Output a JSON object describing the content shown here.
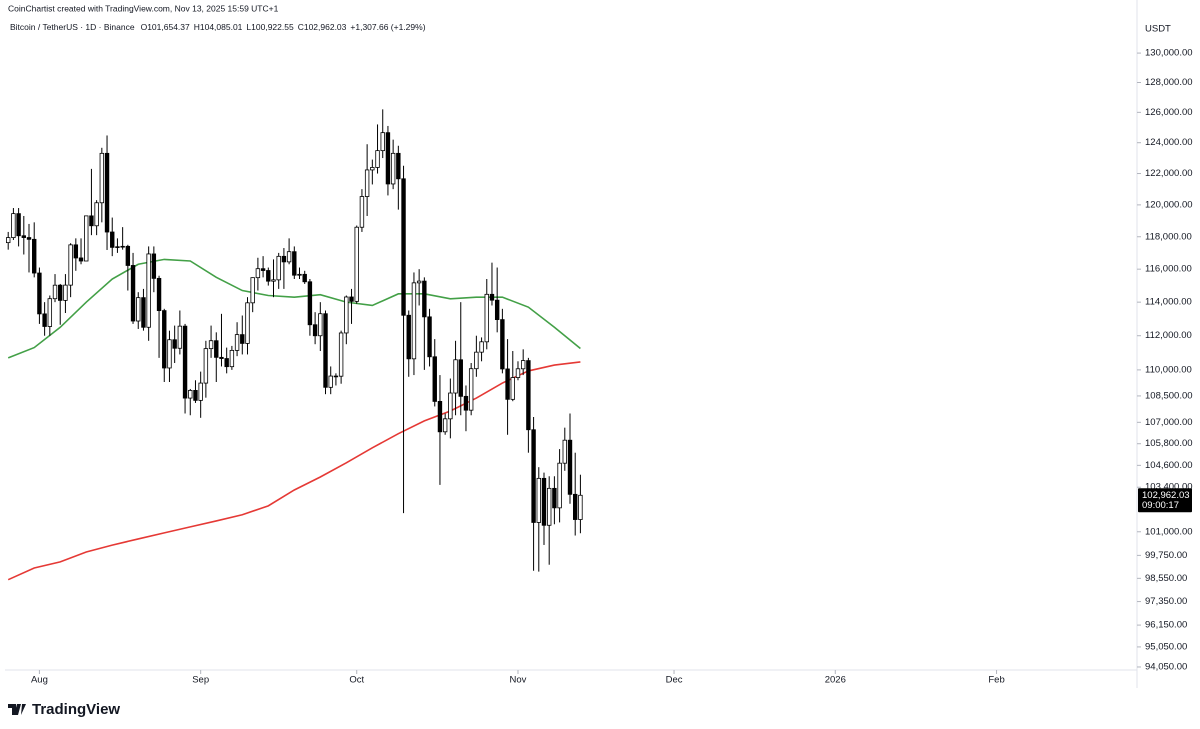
{
  "credit": "CoinChartist created with TradingView.com, Nov 13, 2025 15:59 UTC+1",
  "brand": "TradingView",
  "chart_data": {
    "type": "candlestick",
    "symbol": "Bitcoin / TetherUS · 1D · Binance",
    "ohlc": [
      "O101,654.37",
      "H104,085.01",
      "L100,922.55",
      "C102,962.03",
      "+1,307.66 (+1.29%)"
    ],
    "unit": "USDT",
    "log": true,
    "last_price": {
      "value": 102962.03,
      "label": "102,962.03"
    },
    "countdown": "09:00:17",
    "up_color": "#ffffff",
    "down_color": "#000000",
    "wick_color": "#000000",
    "xlim": [
      "2025-07-25",
      "2026-02-28"
    ],
    "xticks": [
      {
        "value": "2025-08-01",
        "label": "Aug"
      },
      {
        "value": "2025-09-01",
        "label": "Sep"
      },
      {
        "value": "2025-10-01",
        "label": "Oct"
      },
      {
        "value": "2025-11-01",
        "label": "Nov"
      },
      {
        "value": "2025-12-01",
        "label": "Dec"
      },
      {
        "value": "2026-01-01",
        "label": "2026"
      },
      {
        "value": "2026-02-01",
        "label": "Feb"
      }
    ],
    "ylim": [
      93900,
      130900
    ],
    "yticks": [
      {
        "value": 130000,
        "label": "130,000.00"
      },
      {
        "value": 128000,
        "label": "128,000.00"
      },
      {
        "value": 126000,
        "label": "126,000.00"
      },
      {
        "value": 124000,
        "label": "124,000.00"
      },
      {
        "value": 122000,
        "label": "122,000.00"
      },
      {
        "value": 120000,
        "label": "120,000.00"
      },
      {
        "value": 118000,
        "label": "118,000.00"
      },
      {
        "value": 116000,
        "label": "116,000.00"
      },
      {
        "value": 114000,
        "label": "114,000.00"
      },
      {
        "value": 112000,
        "label": "112,000.00"
      },
      {
        "value": 110000,
        "label": "110,000.00"
      },
      {
        "value": 108500,
        "label": "108,500.00"
      },
      {
        "value": 107000,
        "label": "107,000.00"
      },
      {
        "value": 105800,
        "label": "105,800.00"
      },
      {
        "value": 104600,
        "label": "104,600.00"
      },
      {
        "value": 103400,
        "label": "103,400.00"
      },
      {
        "value": 101000,
        "label": "101,000.00"
      },
      {
        "value": 99750,
        "label": "99,750.00"
      },
      {
        "value": 98550,
        "label": "98,550.00"
      },
      {
        "value": 97350,
        "label": "97,350.00"
      },
      {
        "value": 96150,
        "label": "96,150.00"
      },
      {
        "value": 95050,
        "label": "95,050.00"
      },
      {
        "value": 94050,
        "label": "94,050.00"
      }
    ],
    "x": [
      "2025-07-26",
      "2025-07-27",
      "2025-07-28",
      "2025-07-29",
      "2025-07-30",
      "2025-07-31",
      "2025-08-01",
      "2025-08-02",
      "2025-08-03",
      "2025-08-04",
      "2025-08-05",
      "2025-08-06",
      "2025-08-07",
      "2025-08-08",
      "2025-08-09",
      "2025-08-10",
      "2025-08-11",
      "2025-08-12",
      "2025-08-13",
      "2025-08-14",
      "2025-08-15",
      "2025-08-16",
      "2025-08-17",
      "2025-08-18",
      "2025-08-19",
      "2025-08-20",
      "2025-08-21",
      "2025-08-22",
      "2025-08-23",
      "2025-08-24",
      "2025-08-25",
      "2025-08-26",
      "2025-08-27",
      "2025-08-28",
      "2025-08-29",
      "2025-08-30",
      "2025-08-31",
      "2025-09-01",
      "2025-09-02",
      "2025-09-03",
      "2025-09-04",
      "2025-09-05",
      "2025-09-06",
      "2025-09-07",
      "2025-09-08",
      "2025-09-09",
      "2025-09-10",
      "2025-09-11",
      "2025-09-12",
      "2025-09-13",
      "2025-09-14",
      "2025-09-15",
      "2025-09-16",
      "2025-09-17",
      "2025-09-18",
      "2025-09-19",
      "2025-09-20",
      "2025-09-21",
      "2025-09-22",
      "2025-09-23",
      "2025-09-24",
      "2025-09-25",
      "2025-09-26",
      "2025-09-27",
      "2025-09-28",
      "2025-09-29",
      "2025-09-30",
      "2025-10-01",
      "2025-10-02",
      "2025-10-03",
      "2025-10-04",
      "2025-10-05",
      "2025-10-06",
      "2025-10-07",
      "2025-10-08",
      "2025-10-09",
      "2025-10-10",
      "2025-10-11",
      "2025-10-12",
      "2025-10-13",
      "2025-10-14",
      "2025-10-15",
      "2025-10-16",
      "2025-10-17",
      "2025-10-18",
      "2025-10-19",
      "2025-10-20",
      "2025-10-21",
      "2025-10-22",
      "2025-10-23",
      "2025-10-24",
      "2025-10-25",
      "2025-10-26",
      "2025-10-27",
      "2025-10-28",
      "2025-10-29",
      "2025-10-30",
      "2025-10-31",
      "2025-11-01",
      "2025-11-02",
      "2025-11-03",
      "2025-11-04",
      "2025-11-05",
      "2025-11-06",
      "2025-11-07",
      "2025-11-08",
      "2025-11-09",
      "2025-11-10",
      "2025-11-11",
      "2025-11-12",
      "2025-11-13"
    ],
    "open": [
      117635,
      117947,
      119448,
      118062,
      117950,
      117840,
      115764,
      113297,
      112547,
      114208,
      115024,
      114106,
      115028,
      117497,
      116688,
      116500,
      119306,
      118686,
      120134,
      123306,
      118295,
      117342,
      117380,
      117405,
      116227,
      112872,
      114271,
      112500,
      116935,
      115438,
      113493,
      110111,
      111763,
      111262,
      112566,
      108377,
      108816,
      108246,
      109237,
      111240,
      111705,
      110730,
      110660,
      110187,
      111137,
      112065,
      111546,
      113960,
      115482,
      116029,
      115918,
      115268,
      115349,
      116788,
      116447,
      117074,
      115632,
      115685,
      115232,
      112650,
      111998,
      113307,
      108994,
      109643,
      109635,
      112163,
      114311,
      114048,
      118594,
      120529,
      122232,
      122391,
      123482,
      124658,
      121332,
      123306,
      121662,
      113214,
      110644,
      115166,
      115272,
      113119,
      110763,
      108187,
      106467,
      107198,
      108666,
      110588,
      108476,
      107688,
      110069,
      111033,
      111641,
      114472,
      114119,
      112956,
      110055,
      108305,
      109556,
      110064,
      110540,
      106583,
      101497,
      103885,
      101346,
      103339,
      102282,
      104719,
      105996,
      103014,
      101654
    ],
    "high": [
      118300,
      119800,
      119800,
      119300,
      118800,
      118900,
      116100,
      114000,
      114400,
      115700,
      115100,
      115700,
      117600,
      117900,
      117900,
      119300,
      122300,
      120300,
      123667,
      124474,
      119200,
      117900,
      118600,
      117500,
      117000,
      114600,
      114800,
      117400,
      117400,
      115600,
      113600,
      112300,
      112600,
      113500,
      112700,
      108900,
      109400,
      109900,
      111700,
      112600,
      112200,
      113300,
      111300,
      111400,
      112800,
      113200,
      114300,
      115500,
      116700,
      116800,
      116100,
      116600,
      117000,
      117300,
      117900,
      117400,
      116100,
      115900,
      115400,
      113400,
      114000,
      113500,
      110200,
      109800,
      112300,
      114400,
      114800,
      118700,
      121000,
      123900,
      122900,
      125200,
      126199,
      125100,
      124200,
      123800,
      122500,
      113500,
      115800,
      116000,
      115500,
      113600,
      111800,
      109700,
      107500,
      109500,
      111700,
      114000,
      109100,
      110400,
      112000,
      111900,
      115400,
      116400,
      116100,
      113600,
      111800,
      111100,
      110500,
      111200,
      110700,
      107300,
      104500,
      104200,
      104000,
      104000,
      105500,
      106700,
      107500,
      105300,
      104085
    ],
    "low": [
      117200,
      117800,
      117400,
      116900,
      115800,
      115500,
      112700,
      112000,
      112000,
      114000,
      112650,
      113350,
      114300,
      115900,
      116300,
      116500,
      118100,
      118100,
      118900,
      117180,
      116800,
      117000,
      117200,
      114700,
      112700,
      112400,
      112300,
      111700,
      114600,
      110700,
      109300,
      109300,
      110400,
      110900,
      107500,
      107400,
      108100,
      107255,
      108400,
      110700,
      109300,
      110200,
      109800,
      110000,
      110800,
      110900,
      110900,
      113400,
      114700,
      115500,
      115000,
      114300,
      114800,
      114800,
      116300,
      115400,
      115400,
      115100,
      112000,
      111500,
      111100,
      108600,
      108600,
      109100,
      109200,
      111500,
      112700,
      113900,
      118300,
      119300,
      121300,
      122000,
      123000,
      120600,
      121000,
      119700,
      102000,
      109600,
      109700,
      113800,
      110000,
      110200,
      107900,
      103528,
      106300,
      106100,
      107400,
      107400,
      106500,
      107400,
      109600,
      110500,
      111200,
      113800,
      112200,
      109800,
      106300,
      108200,
      109400,
      109700,
      105300,
      98944,
      98900,
      100300,
      99260,
      101400,
      101500,
      104300,
      102500,
      100800,
      100922
    ],
    "close": [
      117947,
      119448,
      118062,
      117950,
      117840,
      115764,
      113297,
      112547,
      114208,
      115024,
      114106,
      115028,
      117497,
      116688,
      116500,
      119306,
      118686,
      120134,
      123306,
      118295,
      117342,
      117380,
      117405,
      116227,
      112872,
      114271,
      112500,
      116935,
      115438,
      113493,
      110111,
      111763,
      111262,
      112566,
      108377,
      108816,
      108246,
      109237,
      111240,
      111705,
      110730,
      110660,
      110187,
      111137,
      112065,
      111546,
      113960,
      115482,
      116029,
      115918,
      115268,
      115349,
      116788,
      116447,
      117074,
      115632,
      115685,
      115232,
      112650,
      111998,
      113307,
      108994,
      109643,
      109635,
      112163,
      114311,
      114048,
      118594,
      120529,
      122232,
      122391,
      123482,
      124658,
      121332,
      123306,
      121662,
      113214,
      110644,
      115166,
      115272,
      113119,
      110763,
      108187,
      106467,
      107198,
      108666,
      110588,
      108476,
      107688,
      110069,
      111033,
      111641,
      114472,
      114119,
      112956,
      110055,
      108305,
      109556,
      110064,
      110540,
      106583,
      101497,
      103885,
      101346,
      103339,
      102282,
      104719,
      105996,
      103014,
      101654,
      102962
    ],
    "series": [
      {
        "color": "#43a047",
        "x": [
          "2025-07-26",
          "2025-07-31",
          "2025-08-05",
          "2025-08-10",
          "2025-08-15",
          "2025-08-20",
          "2025-08-25",
          "2025-08-30",
          "2025-09-04",
          "2025-09-09",
          "2025-09-14",
          "2025-09-19",
          "2025-09-24",
          "2025-09-29",
          "2025-10-04",
          "2025-10-09",
          "2025-10-14",
          "2025-10-19",
          "2025-10-24",
          "2025-10-29",
          "2025-11-03",
          "2025-11-08",
          "2025-11-13"
        ],
        "values": [
          110700,
          111300,
          112500,
          114000,
          115400,
          116300,
          116600,
          116500,
          115500,
          114700,
          114400,
          114300,
          114450,
          114000,
          113800,
          114500,
          114500,
          114200,
          114300,
          114300,
          113700,
          112500,
          111250
        ]
      },
      {
        "color": "#e53935",
        "x": [
          "2025-07-26",
          "2025-07-31",
          "2025-08-05",
          "2025-08-10",
          "2025-08-15",
          "2025-08-20",
          "2025-08-25",
          "2025-08-30",
          "2025-09-04",
          "2025-09-09",
          "2025-09-14",
          "2025-09-19",
          "2025-09-24",
          "2025-09-29",
          "2025-10-04",
          "2025-10-09",
          "2025-10-14",
          "2025-10-19",
          "2025-10-24",
          "2025-10-29",
          "2025-11-03",
          "2025-11-08",
          "2025-11-13"
        ],
        "values": [
          98480,
          99090,
          99410,
          99930,
          100290,
          100620,
          100940,
          101260,
          101580,
          101910,
          102390,
          103250,
          103960,
          104740,
          105570,
          106360,
          107080,
          107640,
          108380,
          109240,
          109940,
          110280,
          110460
        ]
      }
    ]
  }
}
